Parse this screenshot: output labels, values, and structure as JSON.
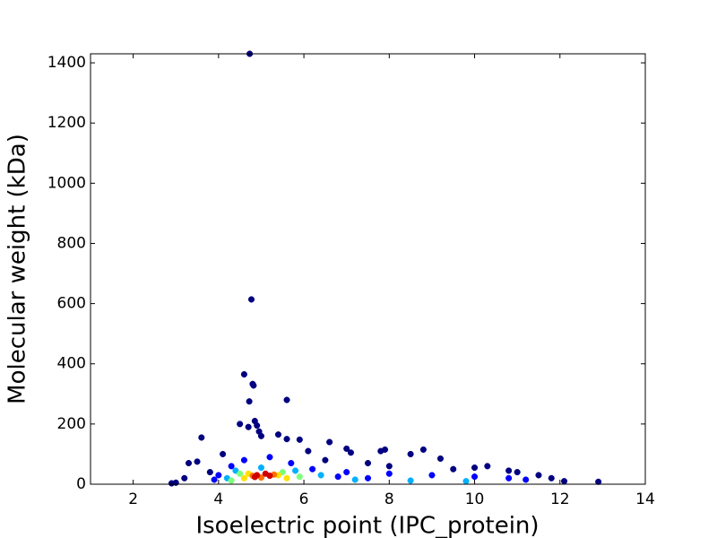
{
  "chart_data": {
    "type": "scatter",
    "x_label": "Isoelectric point (IPC_protein)",
    "y_label": "Molecular weight (kDa)",
    "xlim": [
      1,
      14
    ],
    "ylim": [
      0,
      1430
    ],
    "xticks": [
      2,
      4,
      6,
      8,
      10,
      12,
      14
    ],
    "yticks": [
      0,
      200,
      400,
      600,
      800,
      1000,
      1200,
      1400
    ],
    "x": [
      4.73,
      4.77,
      4.6,
      4.8,
      4.82,
      4.72,
      5.6,
      4.5,
      3.6,
      4.85,
      4.9,
      4.95,
      4.7,
      5.0,
      5.4,
      5.6,
      5.9,
      6.6,
      7.0,
      7.1,
      7.8,
      7.9,
      8.5,
      8.8,
      9.2,
      6.1,
      3.3,
      3.5,
      4.1,
      3.0,
      2.9,
      12.9,
      12.1,
      11.5,
      11.8,
      10.3,
      10.8,
      9.5,
      8.0,
      7.5,
      6.5,
      3.2,
      3.8,
      11.0,
      10.0,
      4.3,
      4.6,
      5.2,
      5.7,
      6.2,
      7.0,
      8.0,
      9.0,
      10.0,
      10.8,
      4.0,
      3.9,
      11.2,
      6.8,
      7.5,
      4.4,
      5.0,
      5.8,
      6.4,
      4.2,
      7.2,
      8.5,
      9.8,
      4.5,
      5.5,
      5.9,
      4.3,
      4.7,
      5.4,
      5.6,
      4.6,
      4.8,
      5.3,
      5.0,
      4.9,
      5.1,
      5.2,
      4.85
    ],
    "values": [
      1430,
      614,
      365,
      333,
      328,
      275,
      280,
      200,
      155,
      210,
      195,
      175,
      190,
      160,
      165,
      150,
      148,
      140,
      118,
      105,
      110,
      115,
      100,
      115,
      85,
      110,
      70,
      75,
      100,
      5,
      3,
      8,
      10,
      30,
      20,
      60,
      45,
      50,
      60,
      70,
      80,
      20,
      40,
      40,
      55,
      60,
      80,
      90,
      70,
      50,
      40,
      35,
      30,
      25,
      20,
      30,
      15,
      15,
      25,
      20,
      45,
      55,
      45,
      30,
      20,
      15,
      12,
      10,
      35,
      40,
      25,
      12,
      35,
      30,
      20,
      20,
      28,
      32,
      22,
      30,
      35,
      28,
      24
    ],
    "colors": [
      "#000080",
      "#000080",
      "#000080",
      "#000080",
      "#000080",
      "#000080",
      "#000080",
      "#000080",
      "#000080",
      "#000080",
      "#000080",
      "#000080",
      "#000080",
      "#000080",
      "#000080",
      "#000080",
      "#000080",
      "#000080",
      "#000080",
      "#000080",
      "#000080",
      "#000080",
      "#000080",
      "#000080",
      "#000080",
      "#000080",
      "#000080",
      "#000080",
      "#000080",
      "#000080",
      "#000080",
      "#000080",
      "#000080",
      "#000080",
      "#000080",
      "#000080",
      "#000080",
      "#000080",
      "#000080",
      "#000080",
      "#000080",
      "#000080",
      "#000080",
      "#000080",
      "#000080",
      "#0000ff",
      "#0000ff",
      "#0000ff",
      "#0000ff",
      "#0000ff",
      "#0000ff",
      "#0000ff",
      "#0000ff",
      "#0000ff",
      "#0000ff",
      "#0000ff",
      "#0000ff",
      "#0000ff",
      "#0000ff",
      "#0000ff",
      "#00b0ff",
      "#00b0ff",
      "#00b0ff",
      "#00b0ff",
      "#00b0ff",
      "#00b0ff",
      "#00b0ff",
      "#00b0ff",
      "#7dff7a",
      "#7dff7a",
      "#7dff7a",
      "#7dff7a",
      "#ffe000",
      "#ffe000",
      "#ffe000",
      "#ffe000",
      "#ff7000",
      "#ff7000",
      "#ff7000",
      "#d00000",
      "#d00000",
      "#d00000",
      "#d00000"
    ]
  }
}
